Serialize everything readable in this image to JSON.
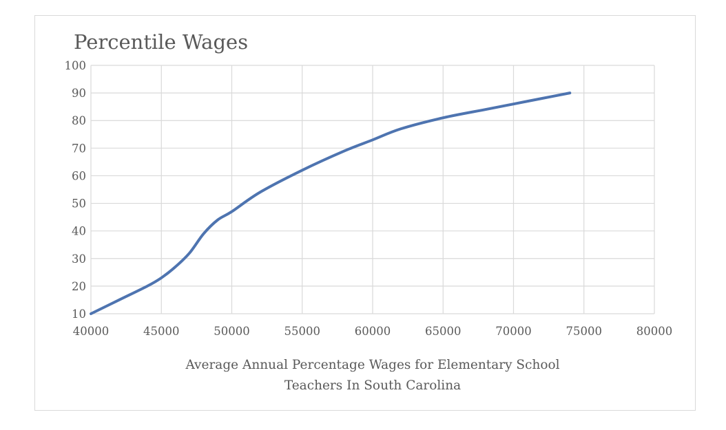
{
  "chart_data": {
    "type": "line",
    "title": "Percentile Wages",
    "xlabel_lines": [
      "Average Annual Percentage Wages for Elementary School",
      "Teachers In South Carolina"
    ],
    "ylabel": "",
    "xlim": [
      40000,
      80000
    ],
    "ylim": [
      10,
      100
    ],
    "x_ticks": [
      "40000",
      "45000",
      "50000",
      "55000",
      "60000",
      "65000",
      "70000",
      "75000",
      "80000"
    ],
    "y_ticks": [
      "10",
      "20",
      "30",
      "40",
      "50",
      "60",
      "70",
      "80",
      "90",
      "100"
    ],
    "grid": true,
    "legend": "none",
    "line_color": "#4e74b0",
    "grid_color": "#d9d9d9",
    "text_color": "#595959",
    "series": [
      {
        "x": [
          40000,
          42000,
          44000,
          45000,
          46000,
          47000,
          48000,
          49000,
          50000,
          52000,
          55000,
          58000,
          60000,
          62000,
          65000,
          68000,
          70000,
          72000,
          74000
        ],
        "values": [
          10,
          15,
          20,
          23,
          27,
          32,
          39,
          44,
          47,
          54,
          62,
          69,
          73,
          77,
          81,
          84,
          86,
          88,
          90
        ]
      }
    ]
  }
}
